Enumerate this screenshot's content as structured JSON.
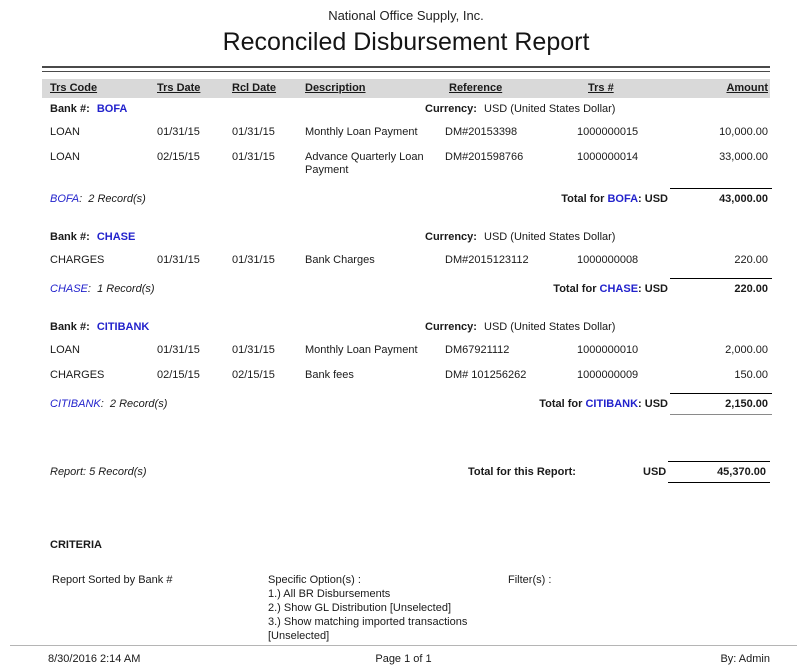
{
  "page": {
    "company": "National Office Supply, Inc.",
    "title": "Reconciled Disbursement Report"
  },
  "columns": {
    "trs_code": "Trs Code",
    "trs_date": "Trs Date",
    "rcl_date": "Rcl Date",
    "description": "Description",
    "reference": "Reference",
    "trs_num": "Trs #",
    "amount": "Amount"
  },
  "labels": {
    "bank": "Bank #:",
    "currency": "Currency:",
    "total_prefix": "Total for ",
    "report_total": "Total for this Report:"
  },
  "groups": [
    {
      "bank": "BOFA",
      "currency": "USD (United States Dollar)",
      "rows": [
        {
          "trs_code": "LOAN",
          "trs_date": "01/31/15",
          "rcl_date": "01/31/15",
          "description": "Monthly Loan Payment",
          "reference": "DM#20153398",
          "trs_num": "1000000015",
          "amount": "10,000.00"
        },
        {
          "trs_code": "LOAN",
          "trs_date": "02/15/15",
          "rcl_date": "01/31/15",
          "description": "Advance Quarterly Loan Payment",
          "reference": "DM#201598766",
          "trs_num": "1000000014",
          "amount": "33,000.00"
        }
      ],
      "records": ":  2 Record(s)",
      "total_suffix": ": USD",
      "total_amount": "43,000.00"
    },
    {
      "bank": "CHASE",
      "currency": "USD (United States Dollar)",
      "rows": [
        {
          "trs_code": "CHARGES",
          "trs_date": "01/31/15",
          "rcl_date": "01/31/15",
          "description": "Bank Charges",
          "reference": "DM#2015123112",
          "trs_num": "1000000008",
          "amount": "220.00"
        }
      ],
      "records": ":  1 Record(s)",
      "total_suffix": ": USD",
      "total_amount": "220.00"
    },
    {
      "bank": "CITIBANK",
      "currency": "USD (United States Dollar)",
      "rows": [
        {
          "trs_code": "LOAN",
          "trs_date": "01/31/15",
          "rcl_date": "01/31/15",
          "description": "Monthly Loan Payment",
          "reference": "DM67921112",
          "trs_num": "1000000010",
          "amount": "2,000.00"
        },
        {
          "trs_code": "CHARGES",
          "trs_date": "02/15/15",
          "rcl_date": "02/15/15",
          "description": "Bank fees",
          "reference": "DM# 101256262",
          "trs_num": "1000000009",
          "amount": "150.00"
        }
      ],
      "records": ":  2 Record(s)",
      "total_suffix": ": USD",
      "total_amount": "2,150.00"
    }
  ],
  "summary": {
    "records": "Report: 5 Record(s)",
    "currency": "USD",
    "amount": "45,370.00"
  },
  "criteria": {
    "heading": "CRITERIA",
    "sorted_by": "Report Sorted by Bank #",
    "options_label": "Specific Option(s) :",
    "options": [
      "1.) All BR Disbursements",
      "2.) Show GL Distribution [Unselected]",
      "3.) Show matching imported transactions [Unselected]"
    ],
    "filters_label": "Filter(s) :"
  },
  "footer": {
    "datetime": "8/30/2016 2:14 AM",
    "page": "Page 1 of 1",
    "by": "By: Admin"
  },
  "colors": {
    "link_blue": "#2222CC",
    "header_bg": "#D9D9D9"
  }
}
